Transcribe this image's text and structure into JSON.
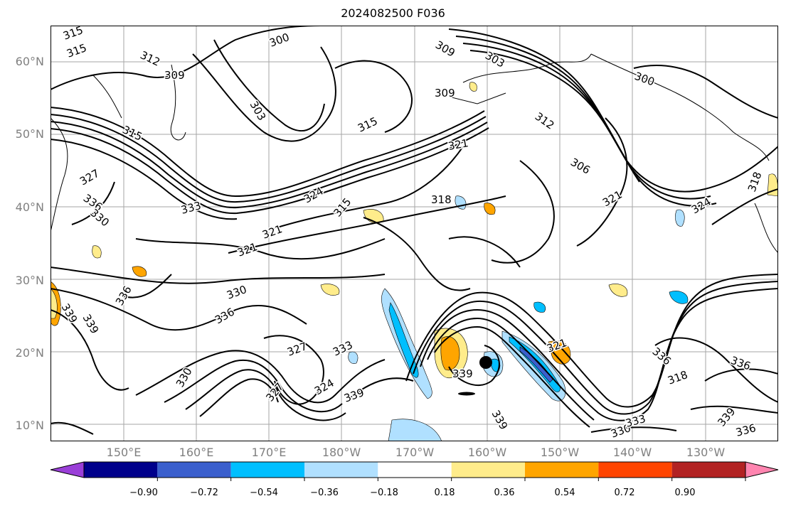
{
  "title": "2024082500 F036",
  "map": {
    "latitude_labels": [
      "10°N",
      "20°N",
      "30°N",
      "40°N",
      "50°N",
      "60°N"
    ],
    "longitude_labels": [
      "150°E",
      "160°E",
      "170°E",
      "180°W",
      "170°W",
      "160°W",
      "150°W",
      "140°W",
      "130°W"
    ],
    "contour_labels": [
      "315",
      "315",
      "312",
      "309",
      "300",
      "303",
      "309",
      "309",
      "303",
      "300",
      "312",
      "306",
      "315",
      "315",
      "321",
      "327",
      "318",
      "324",
      "315",
      "336",
      "330",
      "333",
      "318",
      "321",
      "324",
      "321",
      "321",
      "330",
      "336",
      "339",
      "339",
      "336",
      "327",
      "333",
      "330",
      "324",
      "327",
      "339",
      "339",
      "339",
      "336",
      "336",
      "339",
      "336",
      "330",
      "333",
      "321",
      "318"
    ],
    "storm_marker": "black filled circle",
    "shading_colors": [
      "#9a3fd8",
      "#00008b",
      "#3a5fcd",
      "#00bfff",
      "#b0e0ff",
      "#ffffff",
      "#ffec8b",
      "#ffa500",
      "#ff4500",
      "#b22222",
      "#ff85b0"
    ]
  },
  "colorbar": {
    "tick_labels": [
      "−0.90",
      "−0.72",
      "−0.54",
      "−0.36",
      "−0.18",
      "0.18",
      "0.36",
      "0.54",
      "0.72",
      "0.90"
    ],
    "colors": [
      "#9a3fd8",
      "#00008b",
      "#3a5fcd",
      "#00bfff",
      "#b0e0ff",
      "#ffffff",
      "#ffec8b",
      "#ffa500",
      "#ff4500",
      "#b22222",
      "#ff85b0"
    ]
  }
}
